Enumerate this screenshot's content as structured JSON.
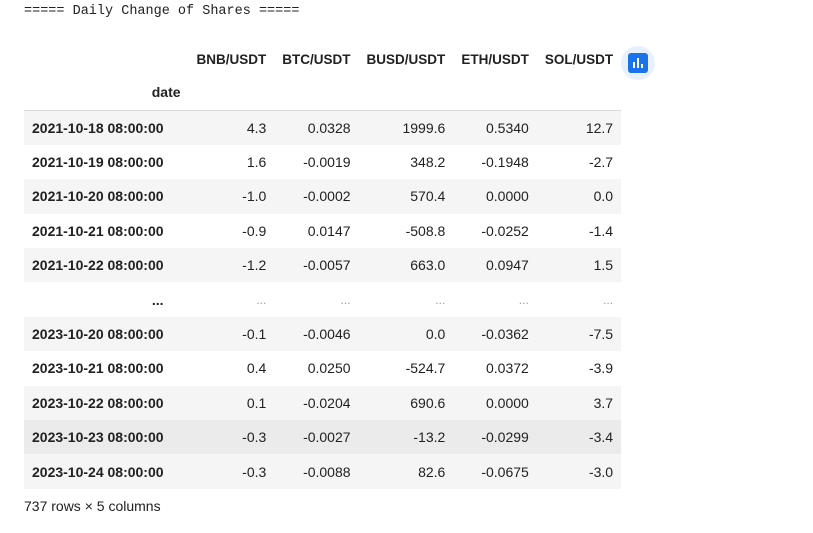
{
  "output": {
    "header": "===== Daily Change of Shares ====="
  },
  "dataframe": {
    "index_name": "date",
    "columns": [
      "BNB/USDT",
      "BTC/USDT",
      "BUSD/USDT",
      "ETH/USDT",
      "SOL/USDT"
    ],
    "rows": [
      {
        "index": "2021-10-18 08:00:00",
        "values": [
          "4.3",
          "0.0328",
          "1999.6",
          "0.5340",
          "12.7"
        ]
      },
      {
        "index": "2021-10-19 08:00:00",
        "values": [
          "1.6",
          "-0.0019",
          "348.2",
          "-0.1948",
          "-2.7"
        ]
      },
      {
        "index": "2021-10-20 08:00:00",
        "values": [
          "-1.0",
          "-0.0002",
          "570.4",
          "0.0000",
          "0.0"
        ]
      },
      {
        "index": "2021-10-21 08:00:00",
        "values": [
          "-0.9",
          "0.0147",
          "-508.8",
          "-0.0252",
          "-1.4"
        ]
      },
      {
        "index": "2021-10-22 08:00:00",
        "values": [
          "-1.2",
          "-0.0057",
          "663.0",
          "0.0947",
          "1.5"
        ]
      },
      {
        "index": "...",
        "values": [
          "...",
          "...",
          "...",
          "...",
          "..."
        ]
      },
      {
        "index": "2023-10-20 08:00:00",
        "values": [
          "-0.1",
          "-0.0046",
          "0.0",
          "-0.0362",
          "-7.5"
        ]
      },
      {
        "index": "2023-10-21 08:00:00",
        "values": [
          "0.4",
          "0.0250",
          "-524.7",
          "0.0372",
          "-3.9"
        ]
      },
      {
        "index": "2023-10-22 08:00:00",
        "values": [
          "0.1",
          "-0.0204",
          "690.6",
          "0.0000",
          "3.7"
        ]
      },
      {
        "index": "2023-10-23 08:00:00",
        "values": [
          "-0.3",
          "-0.0027",
          "-13.2",
          "-0.0299",
          "-3.4"
        ]
      },
      {
        "index": "2023-10-24 08:00:00",
        "values": [
          "-0.3",
          "-0.0088",
          "82.6",
          "-0.0675",
          "-3.0"
        ]
      }
    ],
    "summary": "737 rows × 5 columns"
  },
  "chart_button": {
    "icon": "bar-chart-icon",
    "accent": "#1a73e8",
    "background": "#e8f0fe"
  },
  "colors": {
    "stripe": "#f5f5f5",
    "hover_row": "#ebebeb",
    "text": "#212121"
  }
}
